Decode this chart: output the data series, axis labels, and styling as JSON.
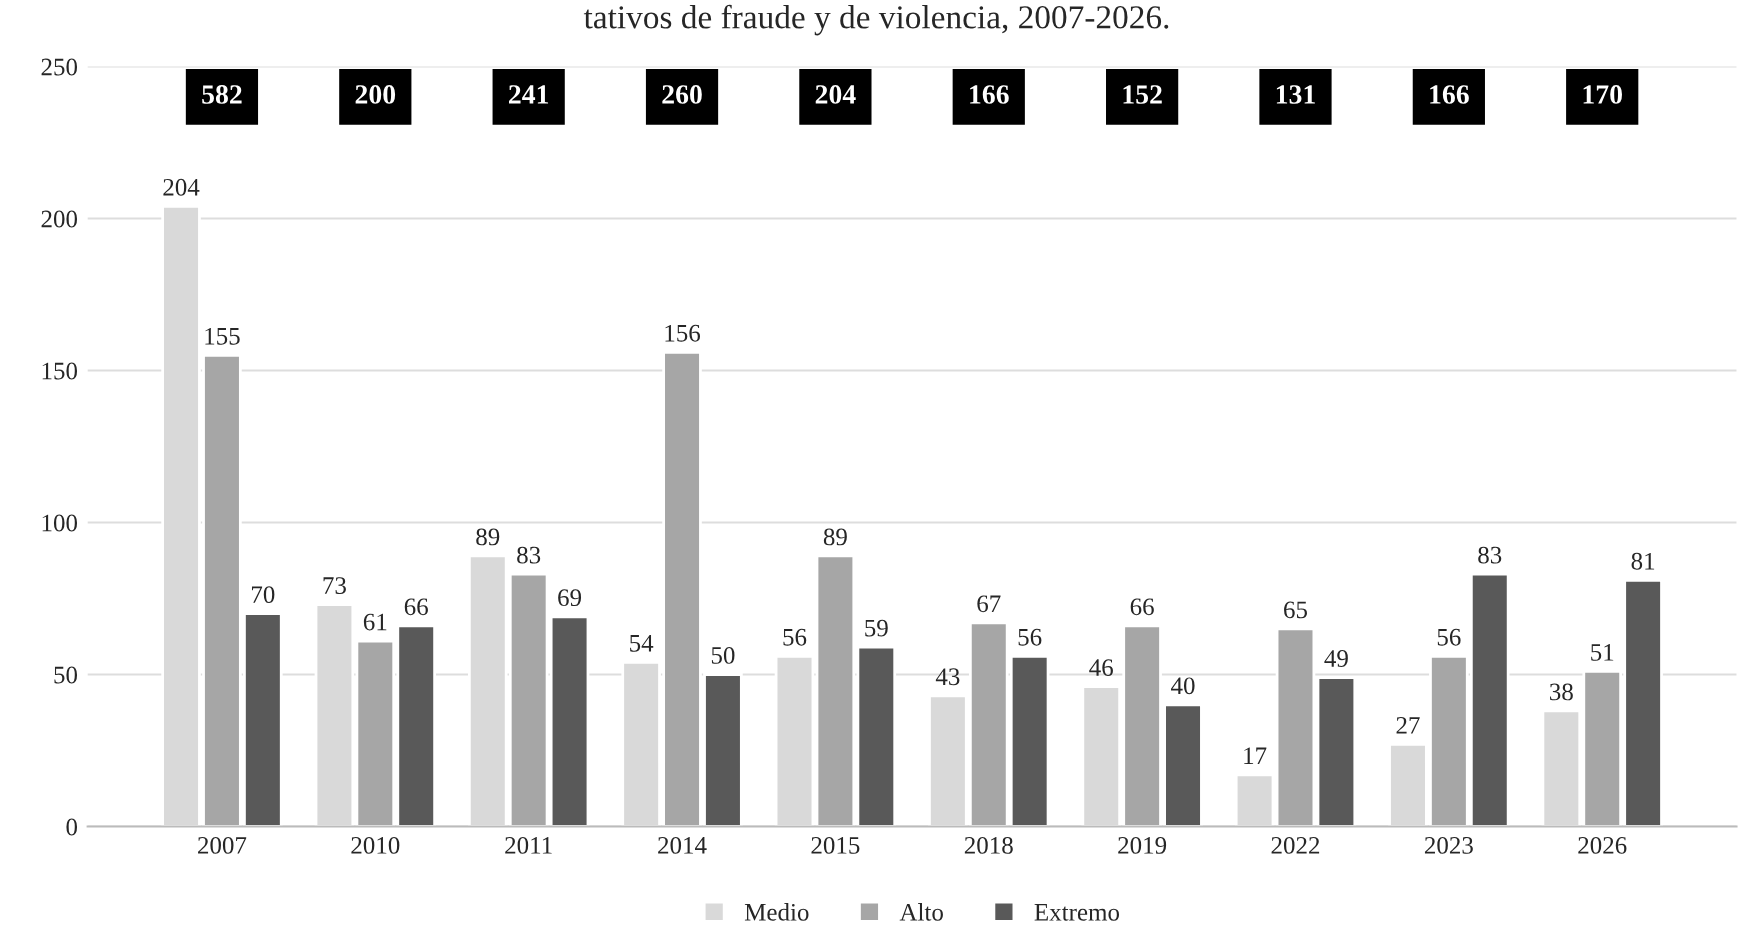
{
  "chart_data": {
    "type": "bar",
    "title": "tativos de fraude y de violencia, 2007-2026.",
    "categories": [
      "2007",
      "2010",
      "2011",
      "2014",
      "2015",
      "2018",
      "2019",
      "2022",
      "2023",
      "2026"
    ],
    "series": [
      {
        "name": "Medio",
        "color": "#d9d9d9",
        "values": [
          204,
          73,
          89,
          54,
          56,
          43,
          46,
          17,
          27,
          38
        ]
      },
      {
        "name": "Alto",
        "color": "#a6a6a6",
        "values": [
          155,
          61,
          83,
          156,
          89,
          67,
          66,
          65,
          56,
          51
        ]
      },
      {
        "name": "Extremo",
        "color": "#595959",
        "values": [
          70,
          66,
          69,
          50,
          59,
          56,
          40,
          49,
          83,
          81
        ]
      }
    ],
    "annotations": [
      {
        "text": "582",
        "x": "2007",
        "y": 240
      },
      {
        "text": "200",
        "x": "2010",
        "y": 240
      },
      {
        "text": "241",
        "x": "2011",
        "y": 240
      },
      {
        "text": "260",
        "x": "2014",
        "y": 240
      },
      {
        "text": "204",
        "x": "2015",
        "y": 240
      },
      {
        "text": "166",
        "x": "2018",
        "y": 240
      },
      {
        "text": "152",
        "x": "2019",
        "y": 240
      },
      {
        "text": "131",
        "x": "2022",
        "y": 240
      },
      {
        "text": "166",
        "x": "2023",
        "y": 240
      },
      {
        "text": "170",
        "x": "2026",
        "y": 240
      }
    ],
    "ylim": [
      0,
      250
    ],
    "yticks": [
      0,
      50,
      100,
      150,
      200,
      250
    ],
    "grid": "y",
    "legend": "bottom",
    "data_labels": true
  }
}
